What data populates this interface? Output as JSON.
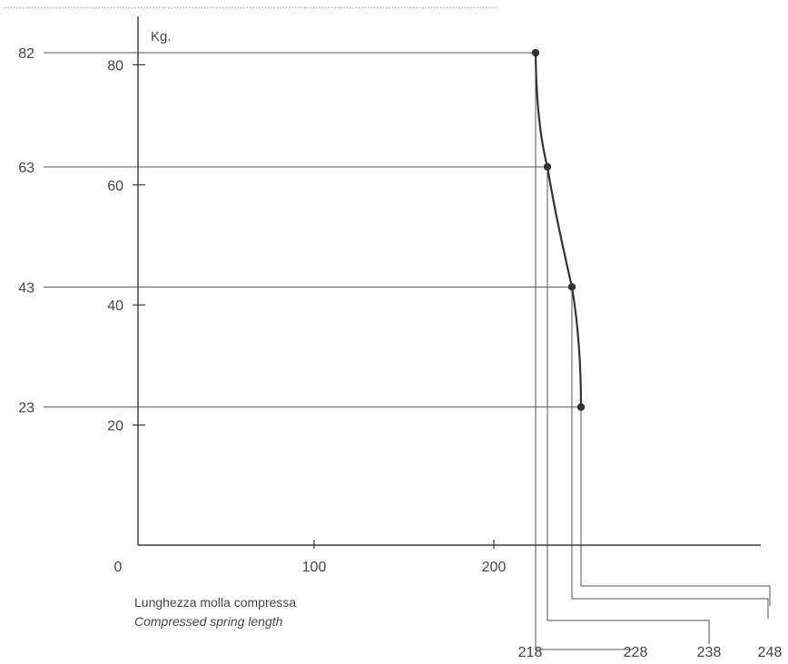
{
  "header_text": "...................................................................................................................................................................",
  "chart_data": {
    "type": "line",
    "title": "",
    "ylabel": "Kg.",
    "xlabel": "Lunghezza molla compressa",
    "xlabel_en": "Compressed spring length",
    "x_ticks": [
      0,
      100,
      200
    ],
    "y_ticks": [
      20,
      40,
      60,
      80
    ],
    "y_marked": [
      82,
      63,
      43,
      23
    ],
    "lengths": [
      218,
      228,
      238,
      248
    ],
    "series": [
      {
        "values": [
          [
            218,
            82
          ],
          [
            228,
            63
          ],
          [
            238,
            43
          ],
          [
            248,
            23
          ]
        ]
      }
    ],
    "grid": false
  },
  "colors": {
    "ink": "#3a3a3a",
    "curve": "#333333",
    "guide": "#555555"
  }
}
